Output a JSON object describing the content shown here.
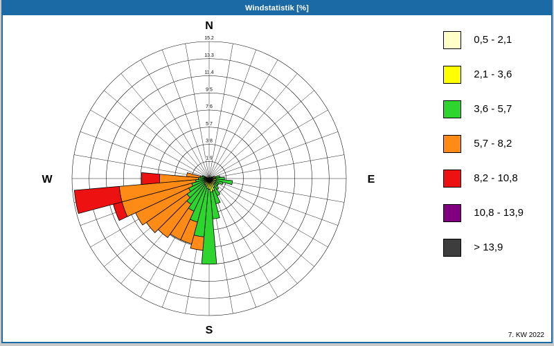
{
  "window": {
    "title": "Windstatistik [%]",
    "titlebar_color": "#1b6aa5",
    "border_color": "#1b6aa5"
  },
  "footer": {
    "week_label": "7. KW 2022"
  },
  "chart_data": {
    "type": "wind_rose",
    "title": "Windstatistik [%]",
    "units": "percent frequency",
    "legend_position": "right",
    "grid": true,
    "sector_width_deg": 10,
    "max": 15.2,
    "rings": [
      1.9,
      3.8,
      5.7,
      7.6,
      9.5,
      11.4,
      13.3,
      15.2
    ],
    "ring_labels": [
      "1.9",
      "3.8",
      "5.7",
      "7.6",
      "9.5",
      "11.4",
      "13.3",
      "15.2"
    ],
    "compass": {
      "n": "N",
      "e": "E",
      "s": "S",
      "w": "W"
    },
    "bins": [
      {
        "label": "0,5 - 2,1",
        "color": "#ffffc8"
      },
      {
        "label": "2,1 - 3,6",
        "color": "#ffff00"
      },
      {
        "label": "3,6 - 5,7",
        "color": "#2fd52f"
      },
      {
        "label": "5,7 - 8,2",
        "color": "#ff8b17"
      },
      {
        "label": "8,2 - 10,8",
        "color": "#ee1111"
      },
      {
        "label": "10,8 - 13,9",
        "color": "#800080"
      },
      {
        "label": "> 13,9",
        "color": "#3d3d3d"
      }
    ],
    "directions": [
      {
        "deg": 60,
        "values": [
          0.3,
          0,
          0,
          0,
          0,
          0,
          0
        ]
      },
      {
        "deg": 70,
        "values": [
          0.3,
          0.3,
          0,
          0,
          0,
          0,
          0
        ]
      },
      {
        "deg": 80,
        "values": [
          0.3,
          0.4,
          0.5,
          0,
          0,
          0,
          0
        ]
      },
      {
        "deg": 90,
        "values": [
          0.3,
          0.4,
          1.0,
          0,
          0,
          0,
          0
        ]
      },
      {
        "deg": 100,
        "values": [
          0.3,
          0.5,
          1.8,
          0,
          0,
          0,
          0
        ]
      },
      {
        "deg": 110,
        "values": [
          0.3,
          0.4,
          0.9,
          0,
          0,
          0,
          0
        ]
      },
      {
        "deg": 120,
        "values": [
          0.3,
          0.5,
          0.4,
          0,
          0,
          0,
          0
        ]
      },
      {
        "deg": 130,
        "values": [
          0.3,
          0.5,
          0.4,
          0,
          0,
          0,
          0
        ]
      },
      {
        "deg": 140,
        "values": [
          0.3,
          0.5,
          0.7,
          0,
          0,
          0,
          0
        ]
      },
      {
        "deg": 150,
        "values": [
          0.4,
          0.7,
          1.0,
          0,
          0,
          0,
          0
        ]
      },
      {
        "deg": 160,
        "values": [
          0.5,
          0.9,
          1.5,
          0,
          0,
          0,
          0
        ]
      },
      {
        "deg": 170,
        "values": [
          0.5,
          1.0,
          3.0,
          0,
          0,
          0,
          0
        ]
      },
      {
        "deg": 180,
        "values": [
          0.4,
          0.8,
          8.3,
          0,
          0,
          0,
          0
        ]
      },
      {
        "deg": 190,
        "values": [
          0.4,
          0.7,
          5.4,
          1.5,
          0,
          0,
          0
        ]
      },
      {
        "deg": 200,
        "values": [
          0.3,
          0.6,
          4.1,
          2.5,
          0,
          0,
          0
        ]
      },
      {
        "deg": 210,
        "values": [
          0.3,
          0.5,
          3.2,
          3.5,
          0,
          0,
          0
        ]
      },
      {
        "deg": 220,
        "values": [
          0.3,
          0.5,
          2.7,
          4.5,
          0,
          0,
          0
        ]
      },
      {
        "deg": 230,
        "values": [
          0.2,
          0.4,
          2.4,
          5.5,
          0,
          0,
          0
        ]
      },
      {
        "deg": 240,
        "values": [
          0.2,
          0.4,
          1.9,
          6.5,
          0,
          0,
          0
        ]
      },
      {
        "deg": 250,
        "values": [
          0.2,
          0.3,
          1.5,
          8.0,
          1.0,
          0,
          0
        ]
      },
      {
        "deg": 260,
        "values": [
          0.2,
          0.3,
          1.0,
          8.5,
          5.0,
          0,
          0
        ]
      },
      {
        "deg": 270,
        "values": [
          0.2,
          0.3,
          0.7,
          4.3,
          2.0,
          0,
          0
        ]
      },
      {
        "deg": 280,
        "values": [
          0.2,
          0.3,
          0.5,
          1.5,
          0,
          0,
          0
        ]
      },
      {
        "deg": 290,
        "values": [
          0.2,
          0.3,
          0.3,
          0,
          0,
          0,
          0
        ]
      }
    ]
  }
}
